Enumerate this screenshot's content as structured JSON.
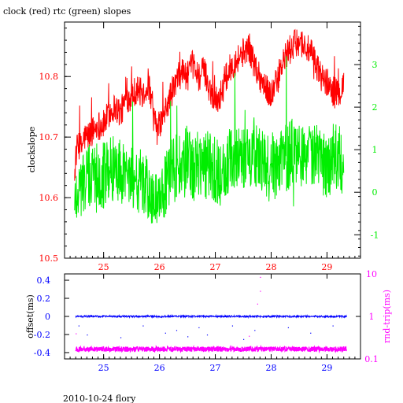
{
  "chart_data": [
    {
      "type": "line",
      "title": "clock (red) rtc (green) slopes",
      "ylabel": "clockslope",
      "x_ticks": [
        "25",
        "26",
        "27",
        "28",
        "29"
      ],
      "xlim": [
        24.3,
        29.6
      ],
      "y_left_ticks": [
        "10.5",
        "10.6",
        "10.7",
        "10.8"
      ],
      "ylim_left": [
        10.5,
        10.89
      ],
      "y_right_ticks": [
        "-1",
        "0",
        "1",
        "2",
        "3"
      ],
      "ylim_right": [
        -1.55,
        4.0
      ],
      "series": [
        {
          "color": "#ff0000",
          "axis": "left",
          "x": [
            24.48,
            24.5,
            24.55,
            24.6,
            24.65,
            24.7,
            24.8,
            24.9,
            25.0,
            25.1,
            25.2,
            25.3,
            25.4,
            25.5,
            25.6,
            25.7,
            25.8,
            25.85,
            25.9,
            25.95,
            26.0,
            26.1,
            26.2,
            26.3,
            26.4,
            26.5,
            26.6,
            26.7,
            26.8,
            26.9,
            27.0,
            27.1,
            27.2,
            27.3,
            27.4,
            27.5,
            27.6,
            27.7,
            27.8,
            27.9,
            28.0,
            28.1,
            28.2,
            28.3,
            28.4,
            28.5,
            28.6,
            28.7,
            28.8,
            28.9,
            29.0,
            29.1,
            29.2,
            29.3
          ],
          "y": [
            10.63,
            10.67,
            10.69,
            10.68,
            10.7,
            10.7,
            10.71,
            10.72,
            10.72,
            10.74,
            10.75,
            10.74,
            10.76,
            10.77,
            10.78,
            10.77,
            10.79,
            10.76,
            10.73,
            10.71,
            10.72,
            10.74,
            10.77,
            10.79,
            10.81,
            10.8,
            10.82,
            10.8,
            10.81,
            10.78,
            10.76,
            10.77,
            10.8,
            10.82,
            10.83,
            10.84,
            10.85,
            10.82,
            10.8,
            10.78,
            10.77,
            10.79,
            10.82,
            10.84,
            10.85,
            10.86,
            10.85,
            10.84,
            10.82,
            10.8,
            10.79,
            10.78,
            10.77,
            10.79
          ]
        },
        {
          "color": "#00ee00",
          "axis": "right",
          "x": [
            24.48,
            24.5,
            24.6,
            24.7,
            24.8,
            24.9,
            25.0,
            25.1,
            25.2,
            25.3,
            25.4,
            25.5,
            25.6,
            25.7,
            25.8,
            25.9,
            26.0,
            26.1,
            26.2,
            26.3,
            26.4,
            26.5,
            26.6,
            26.7,
            26.8,
            26.9,
            27.0,
            27.1,
            27.2,
            27.3,
            27.4,
            27.5,
            27.6,
            27.7,
            27.8,
            27.9,
            28.0,
            28.1,
            28.2,
            28.3,
            28.4,
            28.5,
            28.6,
            28.7,
            28.8,
            28.9,
            29.0,
            29.1,
            29.2,
            29.3
          ],
          "y": [
            -0.5,
            0.0,
            0.2,
            0.3,
            0.4,
            0.5,
            0.4,
            0.5,
            0.6,
            0.5,
            0.5,
            0.4,
            0.3,
            0.2,
            0.0,
            -0.2,
            -0.3,
            0.1,
            0.4,
            0.6,
            0.5,
            0.8,
            0.5,
            0.7,
            0.6,
            0.7,
            0.5,
            0.4,
            0.6,
            0.8,
            0.9,
            0.8,
            0.9,
            1.0,
            0.7,
            0.6,
            0.5,
            0.7,
            0.9,
            0.8,
            1.0,
            0.9,
            1.0,
            0.9,
            0.8,
            0.7,
            0.6,
            0.8,
            0.9,
            0.6
          ]
        }
      ]
    },
    {
      "type": "scatter",
      "ylabel_left": "offset(ms)",
      "ylabel_right": "rnd-trip(ms)",
      "x_ticks": [
        "25",
        "26",
        "27",
        "28",
        "29"
      ],
      "xlim": [
        24.3,
        29.6
      ],
      "y_left_ticks": [
        "0.4",
        "0.2",
        "0",
        "-0.2",
        "-0.4"
      ],
      "ylim_left": [
        -0.47,
        0.47
      ],
      "y_right_ticks": [
        "10",
        "1",
        "0.1"
      ],
      "ylim_right_log": [
        0.1,
        10
      ],
      "series": [
        {
          "color": "#0000ff",
          "axis": "left",
          "x_range": [
            24.5,
            29.35
          ],
          "baseline": 0.0,
          "outliers": [
            {
              "x": 24.55,
              "y": -0.1
            },
            {
              "x": 24.7,
              "y": -0.2
            },
            {
              "x": 25.3,
              "y": -0.23
            },
            {
              "x": 25.7,
              "y": -0.1
            },
            {
              "x": 26.1,
              "y": -0.18
            },
            {
              "x": 26.3,
              "y": -0.15
            },
            {
              "x": 26.5,
              "y": -0.22
            },
            {
              "x": 26.7,
              "y": -0.12
            },
            {
              "x": 26.85,
              "y": -0.2
            },
            {
              "x": 27.3,
              "y": -0.1
            },
            {
              "x": 27.5,
              "y": -0.25
            },
            {
              "x": 27.7,
              "y": -0.15
            },
            {
              "x": 28.3,
              "y": -0.12
            },
            {
              "x": 28.7,
              "y": -0.18
            },
            {
              "x": 29.1,
              "y": -0.1
            }
          ]
        },
        {
          "color": "#ff00ff",
          "axis": "right",
          "x_range": [
            24.5,
            29.35
          ],
          "baseline": 0.17,
          "outliers": [
            {
              "x": 27.8,
              "y": 8.5
            },
            {
              "x": 27.8,
              "y": 4.0
            },
            {
              "x": 27.75,
              "y": 2.0
            },
            {
              "x": 27.6,
              "y": 0.35
            },
            {
              "x": 24.5,
              "y": 0.4
            }
          ]
        }
      ]
    }
  ],
  "footer": {
    "caption": "2010-10-24 flory"
  }
}
